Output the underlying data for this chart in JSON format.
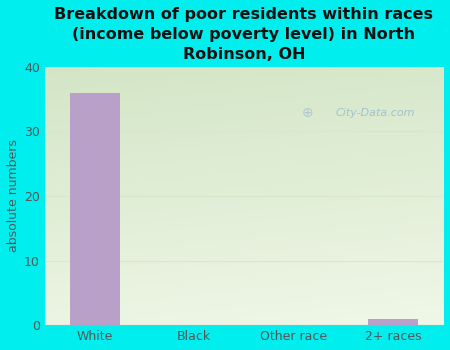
{
  "title": "Breakdown of poor residents within races\n(income below poverty level) in North\nRobinson, OH",
  "categories": [
    "White",
    "Black",
    "Other race",
    "2+ races"
  ],
  "values": [
    36,
    0,
    0,
    1
  ],
  "bar_color": "#b8a0c8",
  "ylabel": "absolute numbers",
  "ylim": [
    0,
    40
  ],
  "yticks": [
    0,
    10,
    20,
    30,
    40
  ],
  "background_color": "#00eeee",
  "plot_bg_top_left": "#c8ddb8",
  "plot_bg_bottom_right": "#eef5e8",
  "grid_color": "#d8e8cc",
  "tick_color": "#555555",
  "title_color": "#111111",
  "title_fontsize": 11.5,
  "watermark": "City-Data.com",
  "watermark_color": "#99bbcc",
  "figsize": [
    4.5,
    3.5
  ],
  "dpi": 100
}
